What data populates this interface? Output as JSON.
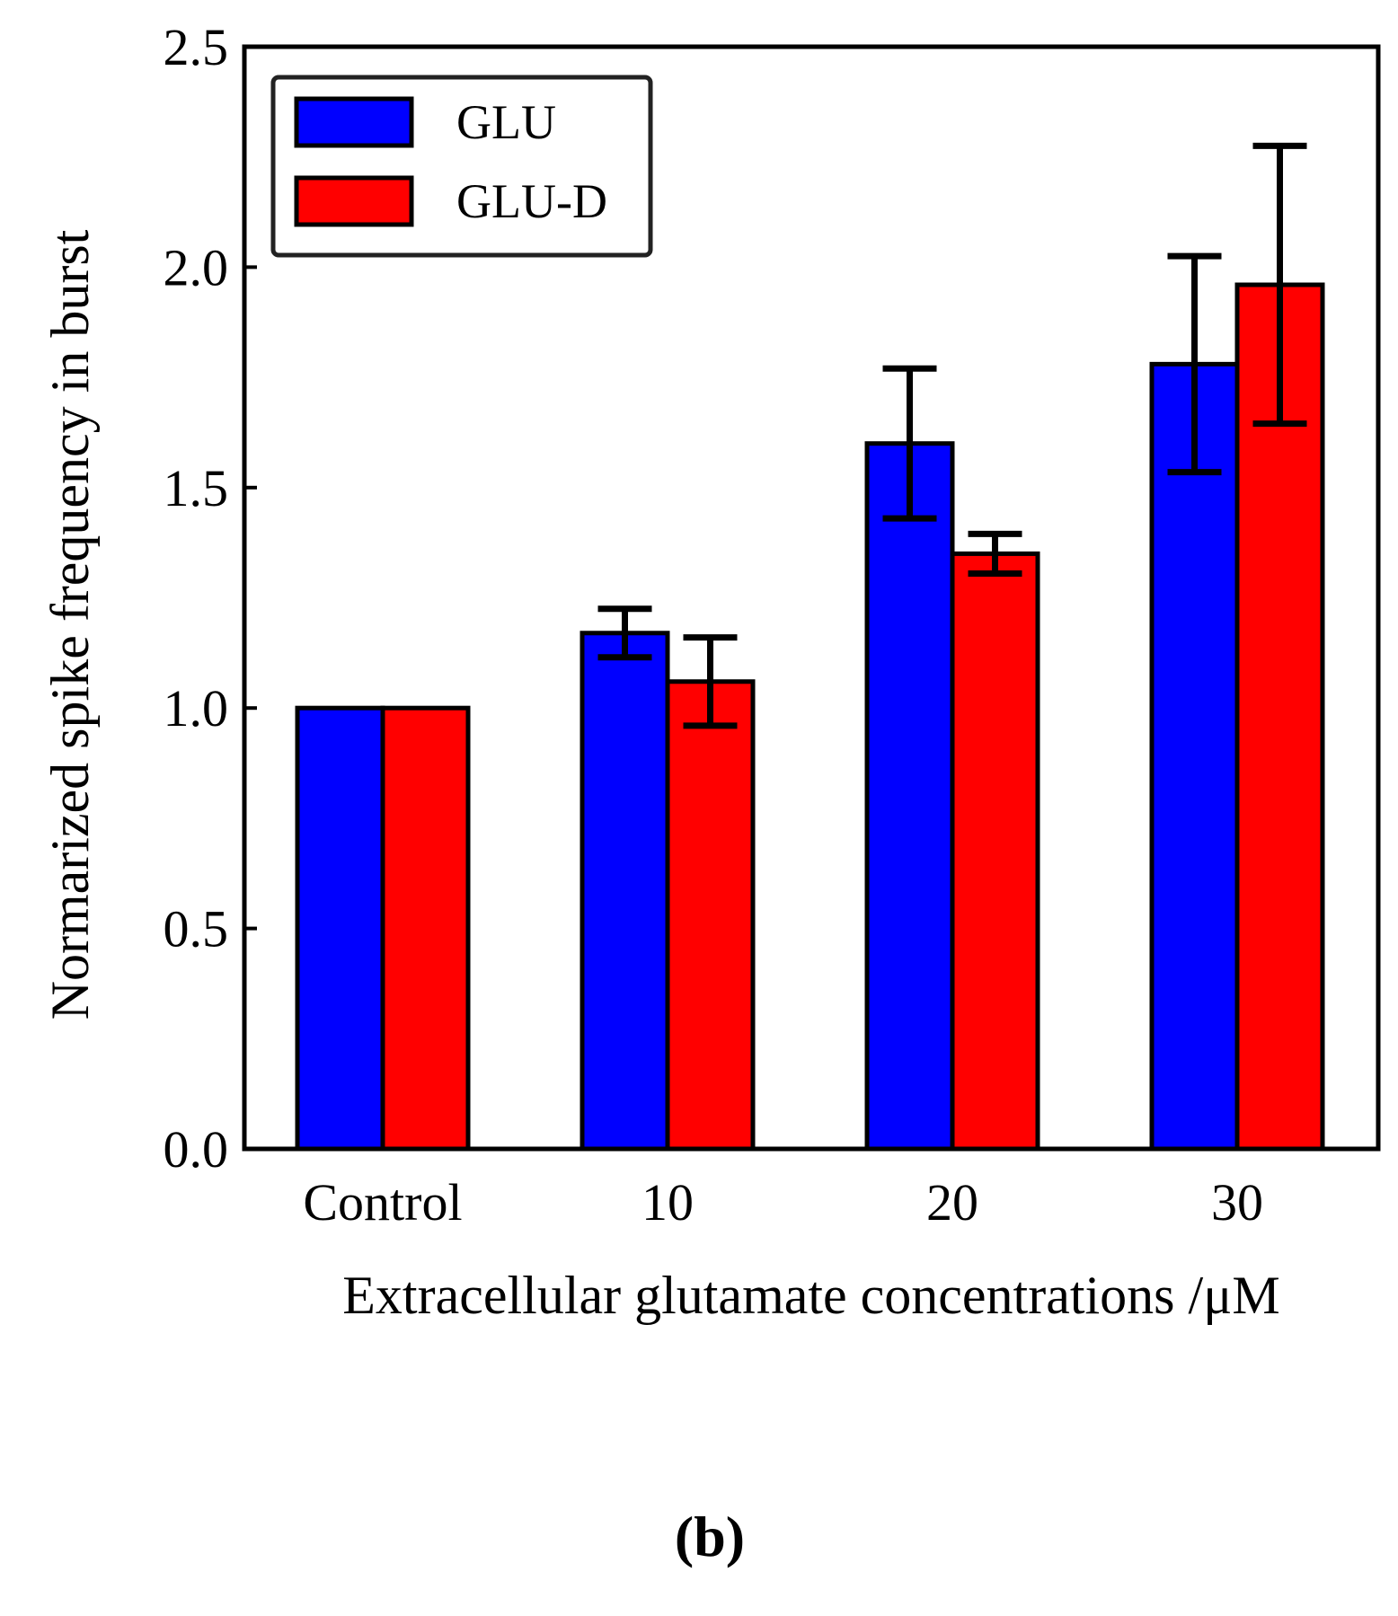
{
  "chart_data": {
    "type": "bar",
    "title": "",
    "xlabel": "Extracellular glutamate concentrations /μM",
    "ylabel": "Normarized spike frequency in burst",
    "categories": [
      "Control",
      "10",
      "20",
      "30"
    ],
    "ylim": [
      0,
      2.5
    ],
    "yticks": [
      0.0,
      0.5,
      1.0,
      1.5,
      2.0,
      2.5
    ],
    "ytick_labels": [
      "0.0",
      "0.5",
      "1.0",
      "1.5",
      "2.0",
      "2.5"
    ],
    "grid": false,
    "legend_position": "top-left",
    "series": [
      {
        "name": "GLU",
        "color": "#0000ff",
        "values": [
          1.0,
          1.17,
          1.6,
          1.78
        ],
        "error": [
          0,
          0.055,
          0.17,
          0.245
        ]
      },
      {
        "name": "GLU-D",
        "color": "#ff0000",
        "values": [
          1.0,
          1.06,
          1.35,
          1.96
        ],
        "error": [
          0,
          0.1,
          0.045,
          0.315
        ]
      }
    ]
  },
  "panel_label": "(b)"
}
